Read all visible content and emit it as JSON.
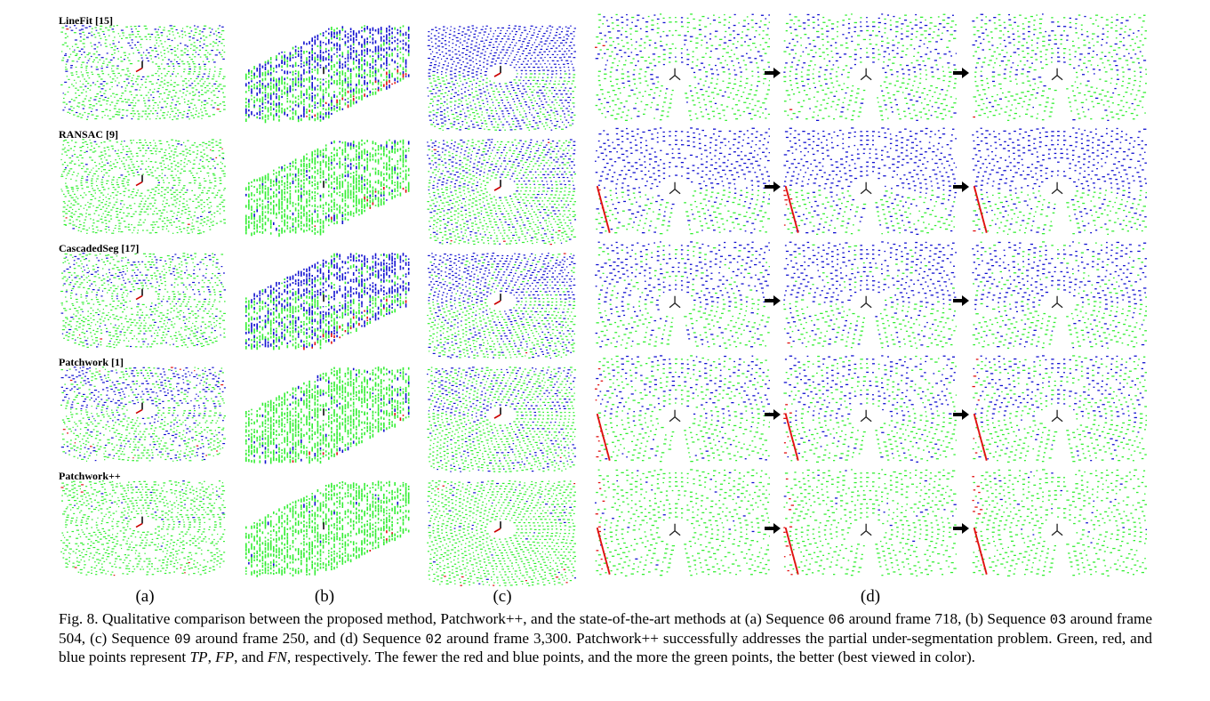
{
  "figure": {
    "rows": [
      {
        "label": "LineFit [15]",
        "profile": "linefit"
      },
      {
        "label": "RANSAC [9]",
        "profile": "ransac"
      },
      {
        "label": "CascadedSeg [17]",
        "profile": "cascaded"
      },
      {
        "label": "Patchwork [1]",
        "profile": "patchwork"
      },
      {
        "label": "Patchwork++",
        "profile": "patchworkpp"
      }
    ],
    "column_labels": [
      "(a)",
      "(b)",
      "(c)",
      "(d)"
    ],
    "point_colors": {
      "tp": "#33ee33",
      "fp": "#e01010",
      "fn": "#1010d0"
    }
  },
  "caption": {
    "p1": "Fig. 8. Qualitative comparison between the proposed method, Patchwork++, and the state-of-the-art methods at (a) Sequence ",
    "seq_a": "06",
    "p2": " around frame 718, (b) Sequence ",
    "seq_b": "03",
    "p3": " around frame 504, (c) Sequence ",
    "seq_c": "09",
    "p4": " around frame 250, and (d) Sequence ",
    "seq_d": "02",
    "p5": " around frame 3,300. Patchwork++ successfully addresses the partial under-segmentation problem. Green, red, and blue points represent ",
    "tp": "TP",
    "c1": ", ",
    "fp": "FP",
    "c2": ", and ",
    "fn": "FN",
    "p6": ", respectively. The fewer the red and blue points, and the more the green points, the better (best viewed in color)."
  }
}
